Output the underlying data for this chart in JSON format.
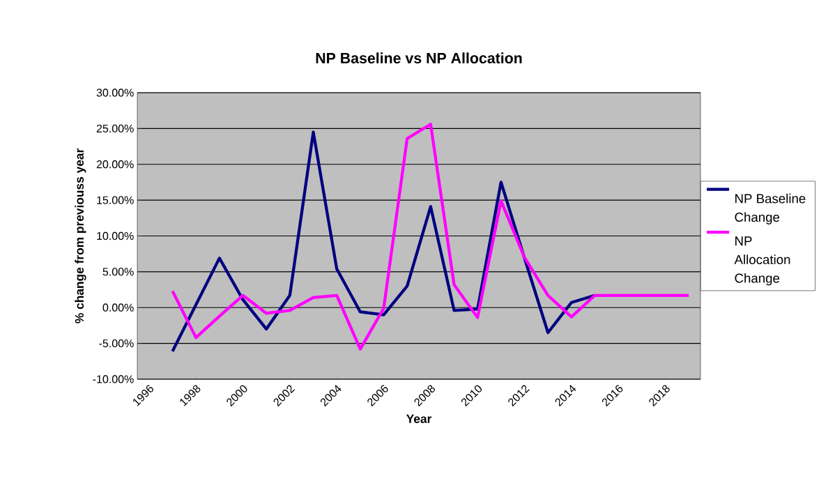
{
  "chart_data": {
    "type": "line",
    "title": "NP Baseline vs NP Allocation",
    "xlabel": "Year",
    "ylabel": "% change from previouss year",
    "categories": [
      "1996",
      null,
      "1998",
      null,
      "2000",
      null,
      "2002",
      null,
      "2004",
      null,
      "2006",
      null,
      "2008",
      null,
      "2010",
      null,
      "2012",
      null,
      "2014",
      null,
      "2016",
      null,
      "2018",
      null
    ],
    "series": [
      {
        "name": "NP Baseline Change",
        "color": "#000080",
        "values": [
          null,
          -6.1,
          0.4,
          6.9,
          1.1,
          -3.0,
          1.7,
          24.5,
          5.4,
          -0.6,
          -1.0,
          3.0,
          14.1,
          -0.4,
          -0.2,
          17.5,
          6.9,
          -3.5,
          0.7,
          1.7,
          null,
          null,
          null,
          null
        ]
      },
      {
        "name": "NP Allocation Change",
        "color": "#ff00ff",
        "values": [
          null,
          2.3,
          -4.2,
          -1.2,
          1.7,
          -0.8,
          -0.4,
          1.4,
          1.7,
          -5.8,
          -0.1,
          23.6,
          25.6,
          3.2,
          -1.4,
          14.9,
          7.0,
          1.7,
          -1.3,
          1.7,
          1.7,
          1.7,
          1.7,
          1.7
        ]
      }
    ],
    "ylim": [
      -10,
      30
    ],
    "yticks": [
      {
        "value": -10,
        "label": "-10.00%"
      },
      {
        "value": -5,
        "label": "-5.00%"
      },
      {
        "value": 0,
        "label": "0.00%"
      },
      {
        "value": 5,
        "label": "5.00%"
      },
      {
        "value": 10,
        "label": "10.00%"
      },
      {
        "value": 15,
        "label": "15.00%"
      },
      {
        "value": 20,
        "label": "20.00%"
      },
      {
        "value": 25,
        "label": "25.00%"
      },
      {
        "value": 30,
        "label": "30.00%"
      }
    ],
    "grid": "y",
    "legend": "right",
    "marker": "none",
    "line_style": "solid"
  }
}
